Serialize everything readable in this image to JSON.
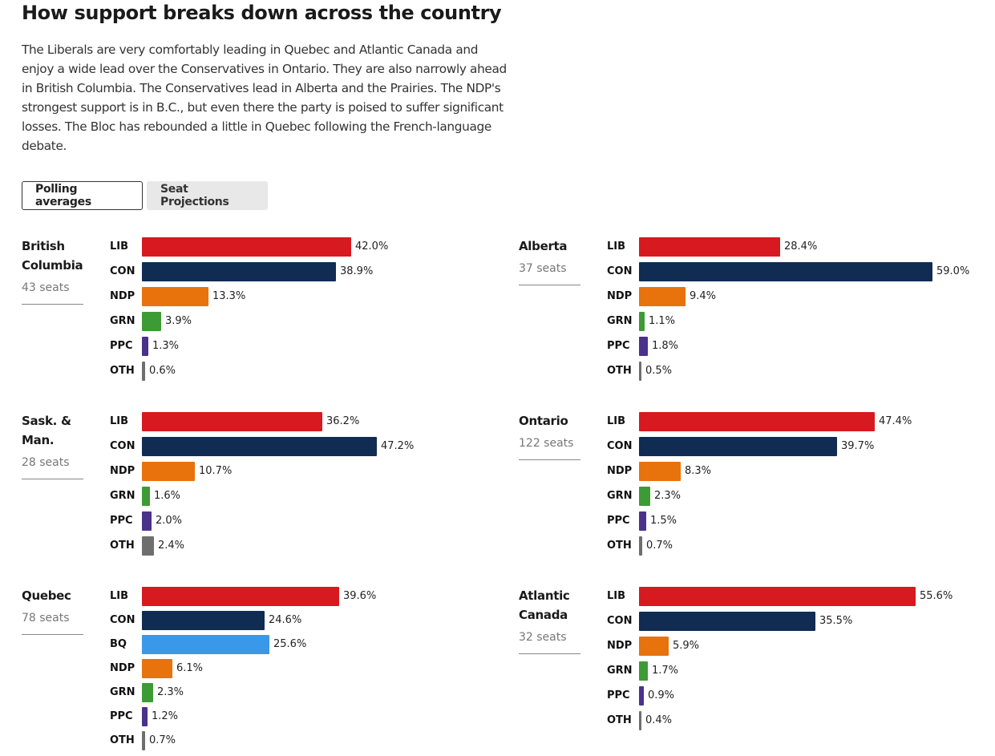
{
  "title": "How support breaks down across the country",
  "intro": "The Liberals are very comfortably leading in Quebec and Atlantic Canada and enjoy a wide lead over the Conservatives in Ontario. They are also narrowly ahead in British Columbia. The Conservatives lead in Alberta and the Prairies. The NDP's strongest support is in B.C., but even there the party is poised to suffer significant losses. The Bloc has rebounded a little in Quebec following the French-language debate.",
  "tabs": {
    "polling": "Polling averages",
    "seats": "Seat Projections"
  },
  "colors": {
    "LIB": "#d71920",
    "CON": "#102c52",
    "NDP": "#e8720c",
    "GRN": "#3d9b35",
    "PPC": "#4a3189",
    "OTH": "#6e6e6e",
    "BQ": "#3a98e8"
  },
  "chart_data": [
    {
      "type": "bar",
      "region": "British Columbia",
      "seats_label": "43 seats",
      "categories": [
        "LIB",
        "CON",
        "NDP",
        "GRN",
        "PPC",
        "OTH"
      ],
      "values": [
        42.0,
        38.9,
        13.3,
        3.9,
        1.3,
        0.6
      ],
      "labels": [
        "42.0%",
        "38.9%",
        "13.3%",
        "3.9%",
        "1.3%",
        "0.6%"
      ]
    },
    {
      "type": "bar",
      "region": "Alberta",
      "seats_label": "37 seats",
      "categories": [
        "LIB",
        "CON",
        "NDP",
        "GRN",
        "PPC",
        "OTH"
      ],
      "values": [
        28.4,
        59.0,
        9.4,
        1.1,
        1.8,
        0.5
      ],
      "labels": [
        "28.4%",
        "59.0%",
        "9.4%",
        "1.1%",
        "1.8%",
        "0.5%"
      ]
    },
    {
      "type": "bar",
      "region": "Sask. & Man.",
      "seats_label": "28 seats",
      "categories": [
        "LIB",
        "CON",
        "NDP",
        "GRN",
        "PPC",
        "OTH"
      ],
      "values": [
        36.2,
        47.2,
        10.7,
        1.6,
        2.0,
        2.4
      ],
      "labels": [
        "36.2%",
        "47.2%",
        "10.7%",
        "1.6%",
        "2.0%",
        "2.4%"
      ]
    },
    {
      "type": "bar",
      "region": "Ontario",
      "seats_label": "122 seats",
      "categories": [
        "LIB",
        "CON",
        "NDP",
        "GRN",
        "PPC",
        "OTH"
      ],
      "values": [
        47.4,
        39.7,
        8.3,
        2.3,
        1.5,
        0.7
      ],
      "labels": [
        "47.4%",
        "39.7%",
        "8.3%",
        "2.3%",
        "1.5%",
        "0.7%"
      ]
    },
    {
      "type": "bar",
      "region": "Quebec",
      "seats_label": "78 seats",
      "categories": [
        "LIB",
        "CON",
        "BQ",
        "NDP",
        "GRN",
        "PPC",
        "OTH"
      ],
      "values": [
        39.6,
        24.6,
        25.6,
        6.1,
        2.3,
        1.2,
        0.7
      ],
      "labels": [
        "39.6%",
        "24.6%",
        "25.6%",
        "6.1%",
        "2.3%",
        "1.2%",
        "0.7%"
      ]
    },
    {
      "type": "bar",
      "region": "Atlantic Canada",
      "seats_label": "32 seats",
      "categories": [
        "LIB",
        "CON",
        "NDP",
        "GRN",
        "PPC",
        "OTH"
      ],
      "values": [
        55.6,
        35.5,
        5.9,
        1.7,
        0.9,
        0.4
      ],
      "labels": [
        "55.6%",
        "35.5%",
        "5.9%",
        "1.7%",
        "0.9%",
        "0.4%"
      ]
    }
  ]
}
